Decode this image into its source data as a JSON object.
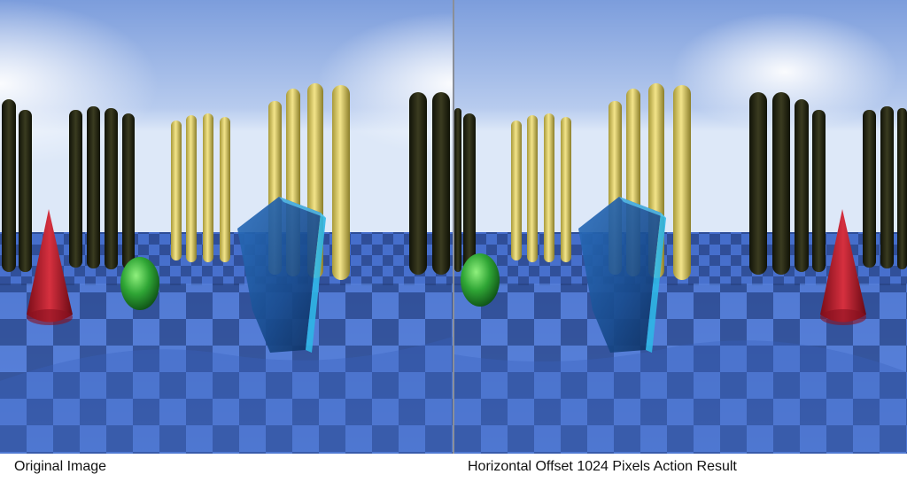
{
  "captions": {
    "left": "Original Image",
    "right": "Horizontal Offset 1024 Pixels Action Result"
  },
  "colors": {
    "sky_top": "#86a6df",
    "sky_horizon": "#e9f2fb",
    "floor_light": "#4f79d6",
    "floor_dark": "#1e3566",
    "pillar_dark": "#1f2214",
    "pillar_yellow": "#e6d36a",
    "cone_red": "#b3182a",
    "egg_green": "#2fa535",
    "block_blue": "#1f5fa8",
    "divider": "#8a8f99"
  }
}
